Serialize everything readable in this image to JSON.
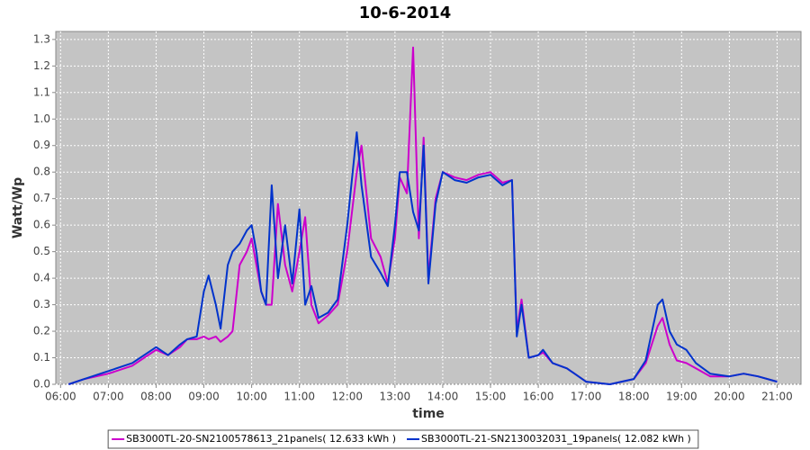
{
  "chart_data": {
    "type": "line",
    "title": "10-6-2014",
    "x_label": "time",
    "y_label": "Watt/Wp",
    "x": [
      6.17,
      6.5,
      7.0,
      7.5,
      7.75,
      8.0,
      8.25,
      8.5,
      8.65,
      8.85,
      9.0,
      9.1,
      9.25,
      9.35,
      9.5,
      9.6,
      9.75,
      9.9,
      10.0,
      10.1,
      10.2,
      10.3,
      10.42,
      10.55,
      10.7,
      10.85,
      11.0,
      11.12,
      11.25,
      11.4,
      11.6,
      11.8,
      12.0,
      12.2,
      12.3,
      12.5,
      12.7,
      12.85,
      13.0,
      13.1,
      13.25,
      13.38,
      13.5,
      13.6,
      13.7,
      13.85,
      14.0,
      14.25,
      14.5,
      14.75,
      15.0,
      15.25,
      15.45,
      15.55,
      15.65,
      15.8,
      16.0,
      16.1,
      16.3,
      16.6,
      17.0,
      17.5,
      18.0,
      18.25,
      18.5,
      18.6,
      18.75,
      18.9,
      19.1,
      19.3,
      19.6,
      20.0,
      20.3,
      20.6,
      21.0
    ],
    "series": [
      {
        "name": "SB3000TL-20-SN2100578613_21panels( 12.633 kWh )",
        "color": "#cc00cc",
        "values": [
          0.0,
          0.02,
          0.04,
          0.07,
          0.1,
          0.13,
          0.11,
          0.14,
          0.17,
          0.17,
          0.18,
          0.17,
          0.18,
          0.16,
          0.18,
          0.2,
          0.45,
          0.5,
          0.55,
          0.45,
          0.35,
          0.3,
          0.3,
          0.68,
          0.45,
          0.35,
          0.5,
          0.63,
          0.3,
          0.23,
          0.26,
          0.3,
          0.5,
          0.8,
          0.9,
          0.55,
          0.48,
          0.38,
          0.55,
          0.78,
          0.72,
          1.27,
          0.55,
          0.93,
          0.4,
          0.7,
          0.8,
          0.78,
          0.77,
          0.79,
          0.8,
          0.76,
          0.77,
          0.2,
          0.32,
          0.1,
          0.11,
          0.12,
          0.08,
          0.06,
          0.01,
          0.0,
          0.02,
          0.08,
          0.22,
          0.25,
          0.15,
          0.09,
          0.08,
          0.06,
          0.03,
          0.03,
          0.04,
          0.03,
          0.01
        ]
      },
      {
        "name": "SB3000TL-21-SN2130032031_19panels( 12.082 kWh )",
        "color": "#0033cc",
        "values": [
          0.0,
          0.02,
          0.05,
          0.08,
          0.11,
          0.14,
          0.11,
          0.15,
          0.17,
          0.18,
          0.35,
          0.41,
          0.3,
          0.21,
          0.45,
          0.5,
          0.53,
          0.58,
          0.6,
          0.5,
          0.35,
          0.3,
          0.75,
          0.4,
          0.6,
          0.38,
          0.66,
          0.3,
          0.37,
          0.25,
          0.27,
          0.32,
          0.6,
          0.95,
          0.75,
          0.48,
          0.42,
          0.37,
          0.6,
          0.8,
          0.8,
          0.65,
          0.58,
          0.9,
          0.38,
          0.68,
          0.8,
          0.77,
          0.76,
          0.78,
          0.79,
          0.75,
          0.77,
          0.18,
          0.3,
          0.1,
          0.11,
          0.13,
          0.08,
          0.06,
          0.01,
          0.0,
          0.02,
          0.09,
          0.3,
          0.32,
          0.2,
          0.15,
          0.13,
          0.08,
          0.04,
          0.03,
          0.04,
          0.03,
          0.01
        ]
      }
    ],
    "xlim": [
      5.9,
      21.5
    ],
    "xticks": [
      {
        "value": 6,
        "label": "06:00"
      },
      {
        "value": 7,
        "label": "07:00"
      },
      {
        "value": 8,
        "label": "08:00"
      },
      {
        "value": 9,
        "label": "09:00"
      },
      {
        "value": 10,
        "label": "10:00"
      },
      {
        "value": 11,
        "label": "11:00"
      },
      {
        "value": 12,
        "label": "12:00"
      },
      {
        "value": 13,
        "label": "13:00"
      },
      {
        "value": 14,
        "label": "14:00"
      },
      {
        "value": 15,
        "label": "15:00"
      },
      {
        "value": 16,
        "label": "16:00"
      },
      {
        "value": 17,
        "label": "17:00"
      },
      {
        "value": 18,
        "label": "18:00"
      },
      {
        "value": 19,
        "label": "19:00"
      },
      {
        "value": 20,
        "label": "20:00"
      },
      {
        "value": 21,
        "label": "21:00"
      }
    ],
    "ylim": [
      0,
      1.33
    ],
    "yticks": [
      {
        "value": 0,
        "label": "0.0"
      },
      0.1,
      0.2,
      0.3,
      0.4,
      0.5,
      0.6,
      0.7,
      0.8,
      0.9,
      {
        "value": 1,
        "label": "1.0"
      },
      1.1,
      1.2,
      1.3
    ],
    "grid": true,
    "legend": "bottom"
  }
}
